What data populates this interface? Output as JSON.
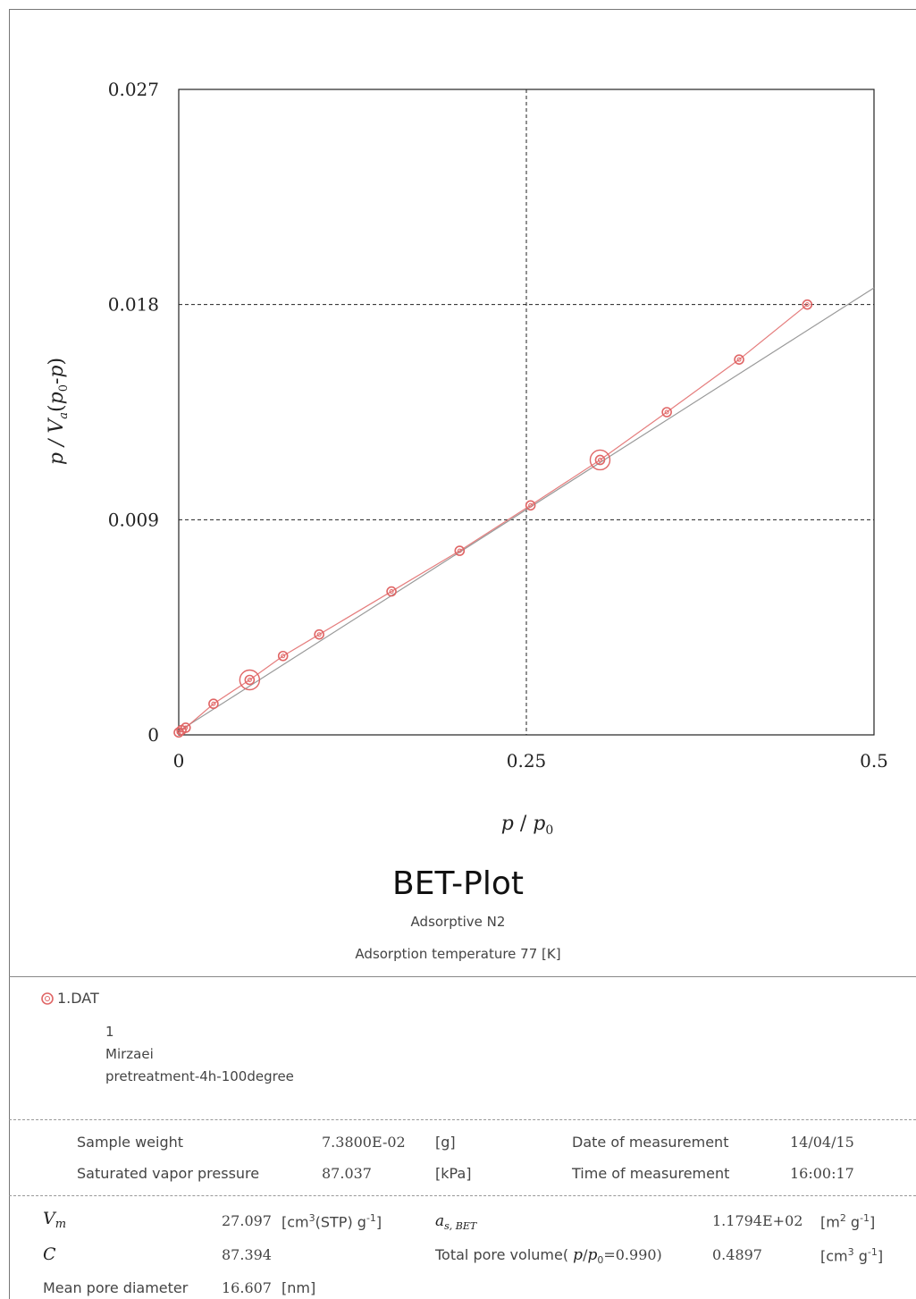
{
  "chart_data": {
    "type": "scatter",
    "xlabel_parts": [
      "p",
      " / ",
      "p",
      "0"
    ],
    "ylabel_parts": [
      "p / V",
      "a",
      "(",
      "p",
      "0",
      "-",
      "p",
      ")"
    ],
    "xlim": [
      0,
      0.5
    ],
    "ylim": [
      0,
      0.027
    ],
    "x_ticks": [
      "0",
      "0.25",
      "0.5"
    ],
    "y_ticks": [
      "0",
      "0.009",
      "0.018",
      "0.027"
    ],
    "x_tick_values": [
      0,
      0.25,
      0.5
    ],
    "y_tick_values": [
      0,
      0.009,
      0.018,
      0.027
    ],
    "grid": "dashed at middle ticks",
    "series": [
      {
        "name": "1.DAT",
        "color": "#e06666",
        "x": [
          0.0,
          0.002,
          0.005,
          0.025,
          0.051,
          0.075,
          0.101,
          0.153,
          0.202,
          0.253,
          0.303,
          0.351,
          0.403,
          0.452
        ],
        "y": [
          0.0001,
          0.0002,
          0.0003,
          0.0013,
          0.0023,
          0.0033,
          0.0042,
          0.006,
          0.0077,
          0.0096,
          0.0115,
          0.0135,
          0.0157,
          0.018
        ],
        "highlighted_points": [
          4,
          10
        ]
      }
    ],
    "fit_line": {
      "color": "#999999",
      "x": [
        0,
        0.5
      ],
      "y": [
        0.00015,
        0.0187
      ]
    }
  },
  "title": "BET-Plot",
  "subtitle1": "Adsorptive N2",
  "subtitle2": "Adsorption temperature 77 [K]",
  "legend": {
    "label": "1.DAT",
    "lines": [
      "1",
      "Mirzaei",
      "pretreatment-4h-100degree"
    ]
  },
  "info": {
    "sample_weight_label": "Sample weight",
    "sample_weight_value": "7.3800E-02",
    "sample_weight_unit": "[g]",
    "svp_label": "Saturated vapor pressure",
    "svp_value": "87.037",
    "svp_unit": "[kPa]",
    "date_label": "Date of measurement",
    "date_value": "14/04/15",
    "time_label": "Time of measurement",
    "time_value": "16:00:17"
  },
  "results": {
    "vm_symbol": "V",
    "vm_sub": "m",
    "vm_value": "27.097",
    "vm_unit_pre": "[cm",
    "vm_unit_sup": "3",
    "vm_unit_post": "(STP) g",
    "vm_unit_sup2": "-1",
    "vm_unit_end": "]",
    "c_symbol": "C",
    "c_value": "87.394",
    "mpd_label": "Mean pore diameter",
    "mpd_value": "16.607",
    "mpd_unit": "[nm]",
    "as_symbol": "a",
    "as_sub": "s, BET",
    "as_value": "1.1794E+02",
    "as_unit_pre": "[m",
    "as_unit_sup": "2",
    "as_unit_mid": " g",
    "as_unit_sup2": "-1",
    "as_unit_end": "]",
    "tpv_label_pre": "Total pore volume(",
    "tpv_p": "p",
    "tpv_slash": "/",
    "tpv_p0": "p",
    "tpv_p0_sub": "0",
    "tpv_eq": "=0.990)",
    "tpv_value": "0.4897",
    "tpv_unit_pre": "[cm",
    "tpv_unit_sup": "3",
    "tpv_unit_mid": " g",
    "tpv_unit_sup2": "-1",
    "tpv_unit_end": "]"
  }
}
